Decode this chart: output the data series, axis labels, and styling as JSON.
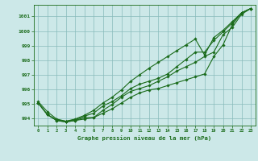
{
  "xlabel": "Graphe pression niveau de la mer (hPa)",
  "background_color": "#cce8e8",
  "grid_color": "#88bbbb",
  "line_color": "#1a6b1a",
  "ylim": [
    993.5,
    1001.8
  ],
  "xlim": [
    -0.5,
    23.5
  ],
  "yticks": [
    994,
    995,
    996,
    997,
    998,
    999,
    1000,
    1001
  ],
  "xticks": [
    0,
    1,
    2,
    3,
    4,
    5,
    6,
    7,
    8,
    9,
    10,
    11,
    12,
    13,
    14,
    15,
    16,
    17,
    18,
    19,
    20,
    21,
    22,
    23
  ],
  "lines": [
    [
      995.05,
      994.25,
      993.85,
      993.75,
      993.85,
      993.95,
      994.05,
      994.35,
      994.65,
      995.05,
      995.45,
      995.75,
      995.95,
      996.05,
      996.25,
      996.45,
      996.65,
      996.85,
      997.05,
      998.25,
      999.05,
      1000.45,
      1001.25,
      1001.55
    ],
    [
      995.05,
      994.25,
      993.85,
      993.75,
      993.85,
      994.05,
      994.05,
      994.55,
      994.95,
      995.45,
      995.85,
      996.05,
      996.25,
      996.55,
      996.85,
      997.25,
      997.55,
      997.85,
      998.25,
      998.55,
      999.75,
      1000.25,
      1001.15,
      1001.55
    ],
    [
      995.15,
      994.45,
      993.95,
      993.8,
      993.9,
      994.15,
      994.35,
      994.85,
      995.15,
      995.55,
      996.05,
      996.35,
      996.55,
      996.75,
      997.05,
      997.55,
      998.05,
      998.55,
      998.55,
      999.35,
      999.95,
      1000.55,
      1001.25,
      1001.55
    ],
    [
      995.05,
      994.25,
      993.9,
      993.8,
      993.95,
      994.2,
      994.55,
      995.05,
      995.45,
      995.95,
      996.55,
      997.0,
      997.45,
      997.85,
      998.25,
      998.65,
      999.05,
      999.45,
      998.35,
      999.55,
      1000.05,
      1000.65,
      1001.25,
      1001.55
    ]
  ]
}
